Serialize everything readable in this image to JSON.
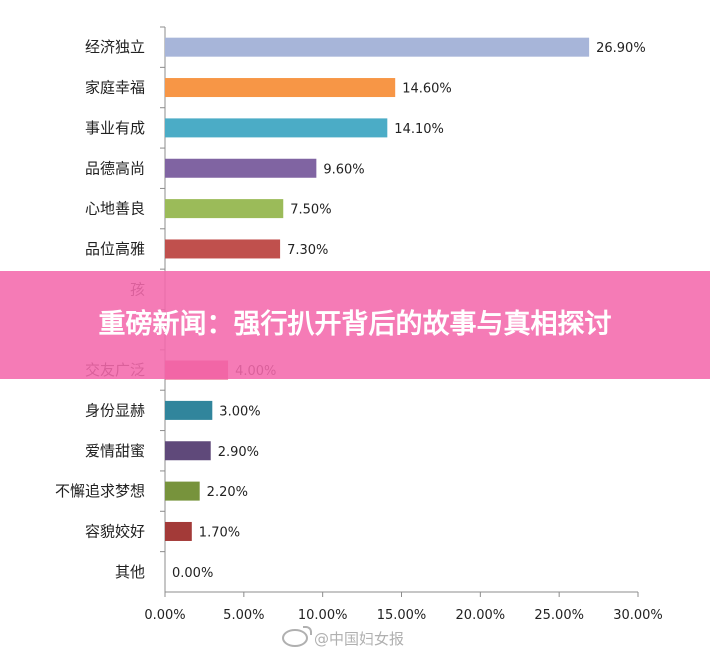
{
  "chart_data": {
    "type": "bar",
    "orientation": "horizontal",
    "categories": [
      "经济独立",
      "家庭幸福",
      "事业有成",
      "品德高尚",
      "心地善良",
      "品位高雅",
      "孩",
      "",
      "交友广泛",
      "身份显赫",
      "爱情甜蜜",
      "不懈追求梦想",
      "容貌姣好",
      "其他"
    ],
    "values": [
      26.9,
      14.6,
      14.1,
      9.6,
      7.5,
      7.3,
      null,
      null,
      4.0,
      3.0,
      2.9,
      2.2,
      1.7,
      0.0
    ],
    "value_labels": [
      "26.90%",
      "14.60%",
      "14.10%",
      "9.60%",
      "7.50%",
      "7.30%",
      "",
      "",
      "4.00%",
      "3.00%",
      "2.90%",
      "2.20%",
      "1.70%",
      "0.00%"
    ],
    "colors": [
      "#A7B5D9",
      "#F79646",
      "#4BACC6",
      "#8064A2",
      "#9BBB59",
      "#C0504D",
      "#8064A2",
      "#4BACC6",
      "#E5507A",
      "#31859C",
      "#5F497A",
      "#77933C",
      "#A33A38",
      "#4F81BD"
    ],
    "xlim": [
      0,
      30
    ],
    "x_ticks": [
      "0.00%",
      "5.00%",
      "10.00%",
      "15.00%",
      "20.00%",
      "25.00%",
      "30.00%"
    ],
    "grid": false,
    "legend": "none"
  },
  "overlay": {
    "headline": "重磅新闻：强行扒开背后的故事与真相探讨",
    "watermark": "@中国妇女报"
  }
}
